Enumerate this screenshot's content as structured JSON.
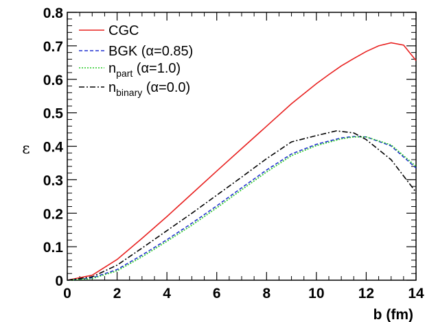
{
  "chart_data": {
    "type": "line",
    "xlabel": "b (fm)",
    "ylabel": "ε",
    "xlim": [
      0,
      14
    ],
    "ylim": [
      0,
      0.8
    ],
    "x_ticks": [
      "0",
      "2",
      "4",
      "6",
      "8",
      "10",
      "12",
      "14"
    ],
    "y_ticks": [
      "0",
      "0.1",
      "0.2",
      "0.3",
      "0.4",
      "0.5",
      "0.6",
      "0.7",
      "0.8"
    ],
    "grid": false,
    "legend_position": "top-left",
    "series": [
      {
        "name": "CGC",
        "color": "#e8201f",
        "style": "solid",
        "x": [
          0,
          1,
          2,
          3,
          4,
          5,
          6,
          7,
          8,
          9,
          10,
          10.5,
          11,
          11.5,
          12,
          12.5,
          13,
          13.5,
          14
        ],
        "y": [
          0,
          0.015,
          0.062,
          0.125,
          0.19,
          0.258,
          0.326,
          0.393,
          0.46,
          0.527,
          0.587,
          0.614,
          0.64,
          0.662,
          0.683,
          0.7,
          0.709,
          0.702,
          0.656
        ]
      },
      {
        "name": "BGK (α=0.85)",
        "legend_main": "BGK (α=0.85)",
        "color": "#1f2fd0",
        "style": "dashed",
        "x": [
          0,
          1,
          2,
          3,
          4,
          5,
          6,
          7,
          8,
          9,
          10,
          11,
          11.5,
          12,
          13,
          14
        ],
        "y": [
          0,
          0.007,
          0.032,
          0.075,
          0.121,
          0.17,
          0.222,
          0.276,
          0.329,
          0.377,
          0.406,
          0.425,
          0.429,
          0.428,
          0.401,
          0.335
        ]
      },
      {
        "name": "npart (α=1.0)",
        "legend_main": "n",
        "legend_sub": "part",
        "legend_suffix": " (α=1.0)",
        "color": "#22c822",
        "style": "dotted",
        "x": [
          0,
          1,
          2,
          3,
          4,
          5,
          6,
          7,
          8,
          9,
          10,
          11,
          11.5,
          12,
          13,
          14
        ],
        "y": [
          0,
          0.005,
          0.028,
          0.07,
          0.116,
          0.164,
          0.216,
          0.27,
          0.323,
          0.372,
          0.402,
          0.422,
          0.428,
          0.428,
          0.404,
          0.34
        ]
      },
      {
        "name": "nbinary (α=0.0)",
        "legend_main": "n",
        "legend_sub": "binary",
        "legend_suffix": " (α=0.0)",
        "color": "#000000",
        "style": "dash-dot",
        "x": [
          0,
          1,
          2,
          3,
          4,
          5,
          6,
          7,
          8,
          9,
          10,
          10.8,
          11.5,
          12,
          13,
          14
        ],
        "y": [
          0,
          0.01,
          0.045,
          0.096,
          0.148,
          0.2,
          0.254,
          0.308,
          0.363,
          0.413,
          0.432,
          0.446,
          0.44,
          0.42,
          0.36,
          0.263
        ]
      }
    ]
  }
}
